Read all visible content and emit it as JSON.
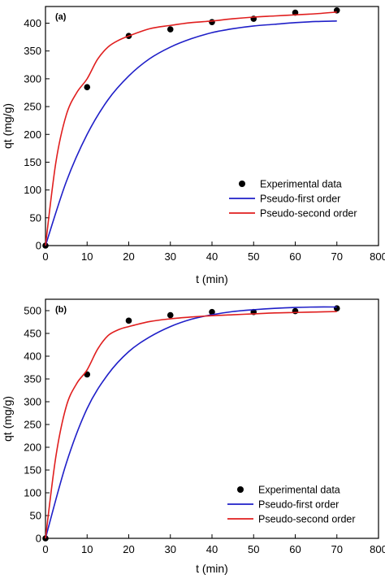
{
  "chart_data": [
    {
      "type": "scatter",
      "panel_label": "(a)",
      "xlabel": "t (min)",
      "ylabel": "qt (mg/g)",
      "xlim": [
        0,
        80
      ],
      "ylim": [
        0,
        430
      ],
      "xticks": [
        "0",
        "10",
        "20",
        "30",
        "40",
        "50",
        "60",
        "70",
        "800"
      ],
      "yticks": [
        "0",
        "50",
        "100",
        "150",
        "200",
        "250",
        "300",
        "350",
        "400"
      ],
      "legend_position": "lower-right",
      "grid": false,
      "series": [
        {
          "name": "Experimental data",
          "kind": "scatter",
          "color": "#000000",
          "x": [
            0,
            10,
            20,
            30,
            40,
            50,
            60,
            70
          ],
          "y": [
            0,
            285,
            377,
            389,
            402,
            408,
            419,
            423
          ]
        },
        {
          "name": "Pseudo-first order",
          "kind": "line",
          "color": "#1f1fc8",
          "x": [
            0,
            5,
            10,
            15,
            20,
            25,
            30,
            35,
            40,
            45,
            50,
            55,
            60,
            65,
            70
          ],
          "y": [
            0,
            115,
            200,
            262,
            305,
            336,
            357,
            372,
            383,
            390,
            395,
            398,
            401,
            403,
            404
          ]
        },
        {
          "name": "Pseudo-second order",
          "kind": "line",
          "color": "#e01e1e",
          "x": [
            0,
            2.5,
            5,
            7.5,
            10,
            12.5,
            15,
            17.5,
            20,
            25,
            30,
            35,
            40,
            45,
            50,
            55,
            60,
            65,
            70
          ],
          "y": [
            0,
            150,
            235,
            275,
            300,
            335,
            357,
            369,
            377,
            390,
            396,
            401,
            404,
            408,
            411,
            413,
            415,
            417,
            420
          ]
        }
      ]
    },
    {
      "type": "scatter",
      "panel_label": "(b)",
      "xlabel": "t (min)",
      "ylabel": "qt (mg/g)",
      "xlim": [
        0,
        80
      ],
      "ylim": [
        0,
        525
      ],
      "xticks": [
        "0",
        "10",
        "20",
        "30",
        "40",
        "50",
        "60",
        "70",
        "800"
      ],
      "yticks": [
        "0",
        "50",
        "100",
        "150",
        "200",
        "250",
        "300",
        "350",
        "400",
        "450",
        "500"
      ],
      "legend_position": "lower-right",
      "grid": false,
      "series": [
        {
          "name": "Experimental data",
          "kind": "scatter",
          "color": "#000000",
          "x": [
            0,
            10,
            20,
            30,
            40,
            50,
            60,
            70
          ],
          "y": [
            0,
            360,
            478,
            490,
            497,
            497,
            499,
            505
          ]
        },
        {
          "name": "Pseudo-first order",
          "kind": "line",
          "color": "#1f1fc8",
          "x": [
            0,
            5,
            10,
            15,
            20,
            25,
            30,
            35,
            40,
            45,
            50,
            55,
            60,
            65,
            70
          ],
          "y": [
            0,
            165,
            285,
            360,
            410,
            442,
            465,
            481,
            491,
            498,
            502,
            505,
            507,
            508,
            508
          ]
        },
        {
          "name": "Pseudo-second order",
          "kind": "line",
          "color": "#e01e1e",
          "x": [
            0,
            2.5,
            5,
            7.5,
            10,
            12.5,
            15,
            17.5,
            20,
            25,
            30,
            35,
            40,
            45,
            50,
            55,
            60,
            65,
            70
          ],
          "y": [
            0,
            180,
            290,
            340,
            370,
            415,
            445,
            458,
            465,
            476,
            482,
            486,
            489,
            491,
            493,
            495,
            496,
            497,
            498
          ]
        }
      ]
    }
  ]
}
